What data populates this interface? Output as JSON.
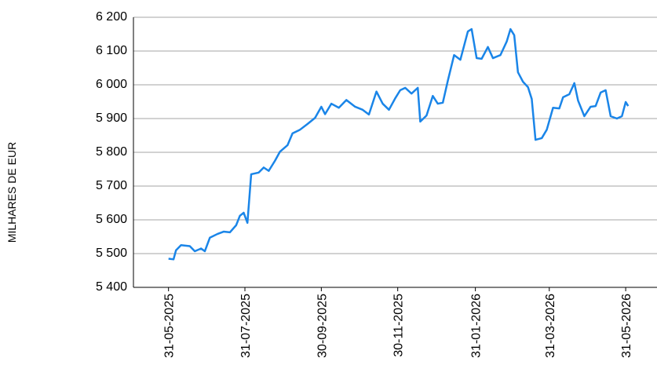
{
  "chart_data": {
    "type": "line",
    "y_label": "MILHARES DE EUR",
    "x": [
      "31-05-2025",
      "04-06-2025",
      "06-06-2025",
      "10-06-2025",
      "17-06-2025",
      "21-06-2025",
      "26-06-2025",
      "29-06-2025",
      "03-07-2025",
      "09-07-2025",
      "14-07-2025",
      "19-07-2025",
      "24-07-2025",
      "27-07-2025",
      "30-07-2025",
      "02-08-2025",
      "05-08-2025",
      "11-08-2025",
      "15-08-2025",
      "19-08-2025",
      "24-08-2025",
      "28-08-2025",
      "03-09-2025",
      "07-09-2025",
      "13-09-2025",
      "19-09-2025",
      "25-09-2025",
      "30-09-2025",
      "03-10-2025",
      "08-10-2025",
      "14-10-2025",
      "20-10-2025",
      "27-10-2025",
      "02-11-2025",
      "07-11-2025",
      "13-11-2025",
      "18-11-2025",
      "23-11-2025",
      "28-11-2025",
      "02-12-2025",
      "06-12-2025",
      "11-12-2025",
      "16-12-2025",
      "18-12-2025",
      "23-12-2025",
      "28-12-2025",
      "01-01-2026",
      "05-01-2026",
      "09-01-2026",
      "14-01-2026",
      "19-01-2026",
      "25-01-2026",
      "28-01-2026",
      "01-02-2026",
      "05-02-2026",
      "10-02-2026",
      "14-02-2026",
      "20-02-2026",
      "25-02-2026",
      "28-02-2026",
      "03-03-2026",
      "06-03-2026",
      "10-03-2026",
      "14-03-2026",
      "17-03-2026",
      "20-03-2026",
      "25-03-2026",
      "29-03-2026",
      "03-04-2026",
      "08-04-2026",
      "11-04-2026",
      "16-04-2026",
      "20-04-2026",
      "23-04-2026",
      "28-04-2026",
      "03-05-2026",
      "07-05-2026",
      "11-05-2026",
      "15-05-2026",
      "19-05-2026",
      "24-05-2026",
      "28-05-2026",
      "31-05-2026",
      "02-06-2026"
    ],
    "series": [
      {
        "color": "#1a85e8",
        "values": [
          5485,
          5483,
          5510,
          5525,
          5522,
          5507,
          5515,
          5507,
          5547,
          5558,
          5565,
          5563,
          5584,
          5612,
          5621,
          5591,
          5735,
          5740,
          5755,
          5745,
          5775,
          5802,
          5821,
          5856,
          5867,
          5884,
          5902,
          5935,
          5913,
          5944,
          5932,
          5955,
          5935,
          5926,
          5912,
          5980,
          5944,
          5926,
          5960,
          5984,
          5991,
          5974,
          5991,
          5891,
          5909,
          5967,
          5944,
          5947,
          6012,
          6088,
          6074,
          6158,
          6165,
          6079,
          6077,
          6112,
          6079,
          6088,
          6128,
          6165,
          6147,
          6037,
          6009,
          5993,
          5958,
          5837,
          5842,
          5867,
          5932,
          5930,
          5963,
          5972,
          6005,
          5953,
          5907,
          5935,
          5937,
          5977,
          5984,
          5907,
          5900,
          5907,
          5949,
          5937
        ]
      }
    ],
    "xlim": [
      "03-05-2025",
      "25-06-2026"
    ],
    "xticks": [
      "31-05-2025",
      "31-07-2025",
      "30-09-2025",
      "30-11-2025",
      "31-01-2026",
      "31-03-2026",
      "31-05-2026"
    ],
    "ylim": [
      5400,
      6200
    ],
    "yticks": [
      {
        "value": 5400,
        "label": "5 400"
      },
      {
        "value": 5500,
        "label": "5 500"
      },
      {
        "value": 5600,
        "label": "5 600"
      },
      {
        "value": 5700,
        "label": "5 700"
      },
      {
        "value": 5800,
        "label": "5 800"
      },
      {
        "value": 5900,
        "label": "5 900"
      },
      {
        "value": 6000,
        "label": "6 000"
      },
      {
        "value": 6100,
        "label": "6 100"
      },
      {
        "value": 6200,
        "label": "6 200"
      }
    ],
    "grid": true
  }
}
